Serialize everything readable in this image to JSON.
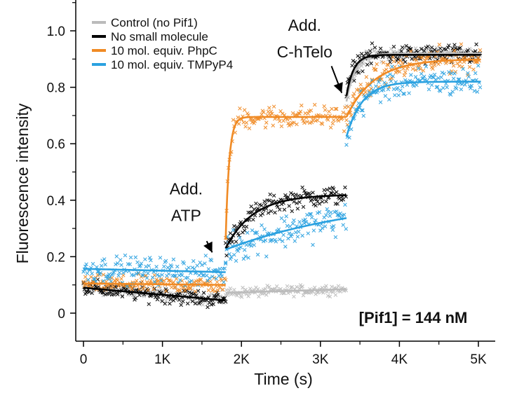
{
  "chart_data": {
    "type": "scatter",
    "xlabel": "Time (s)",
    "ylabel": "Fluorescence intensity",
    "xlim": [
      -100,
      5100
    ],
    "ylim": [
      -0.1,
      1.1
    ],
    "xticks": [
      {
        "value": 0,
        "label": "0"
      },
      {
        "value": 1000,
        "label": "1K"
      },
      {
        "value": 2000,
        "label": "2K"
      },
      {
        "value": 3000,
        "label": "3K"
      },
      {
        "value": 4000,
        "label": "4K"
      },
      {
        "value": 5000,
        "label": "5K"
      }
    ],
    "yticks": [
      {
        "value": 0,
        "label": "0"
      },
      {
        "value": 0.2,
        "label": "0.2"
      },
      {
        "value": 0.4,
        "label": "0.4"
      },
      {
        "value": 0.6,
        "label": "0.6"
      },
      {
        "value": 0.8,
        "label": "0.8"
      },
      {
        "value": 1.0,
        "label": "1.0"
      }
    ],
    "phase_boundaries": [
      1800,
      3330
    ],
    "series": [
      {
        "name": "Control (no Pif1)",
        "color": "#bbbbbb",
        "segments": [
          {
            "x0": 0,
            "x1": 1800,
            "y0": 0.09,
            "y1": 0.05,
            "type": "linear",
            "fit": false,
            "noise": 0.02
          },
          {
            "x0": 1800,
            "x1": 3330,
            "y0": 0.072,
            "y1": 0.085,
            "type": "linear",
            "fit": true,
            "noise": 0.015
          },
          {
            "x0": 3330,
            "x1": 5030,
            "start": 0.75,
            "plateau": 0.92,
            "tau": 110,
            "type": "exp",
            "fit": true,
            "noise": 0.02
          }
        ]
      },
      {
        "name": "No small molecule",
        "color": "#000000",
        "segments": [
          {
            "x0": 0,
            "x1": 1800,
            "y0": 0.09,
            "y1": 0.045,
            "type": "linear",
            "fit": true,
            "noise": 0.025
          },
          {
            "x0": 1800,
            "x1": 3330,
            "start": 0.23,
            "plateau": 0.42,
            "tau": 350,
            "type": "exp",
            "fit": true,
            "noise": 0.03
          },
          {
            "x0": 3330,
            "x1": 5030,
            "start": 0.77,
            "plateau": 0.915,
            "tau": 90,
            "type": "exp",
            "fit": true,
            "noise": 0.03
          }
        ]
      },
      {
        "name": "10 mol. equiv. PhpC",
        "color": "#f08a24",
        "segments": [
          {
            "x0": 0,
            "x1": 1800,
            "y0": 0.105,
            "y1": 0.1,
            "type": "linear",
            "fit": true,
            "noise": 0.025
          },
          {
            "x0": 1800,
            "x1": 3330,
            "start": 0.26,
            "plateau": 0.695,
            "tau": 45,
            "type": "exp",
            "fit": true,
            "noise": 0.035
          },
          {
            "x0": 3330,
            "x1": 5030,
            "start": 0.695,
            "plateau": 0.9,
            "tau": 350,
            "type": "exp",
            "fit": true,
            "noise": 0.04
          }
        ]
      },
      {
        "name": "10 mol. equiv. TMPyP4",
        "color": "#2aa1e0",
        "segments": [
          {
            "x0": 0,
            "x1": 1800,
            "y0": 0.157,
            "y1": 0.145,
            "type": "linear",
            "fit": true,
            "noise": 0.04
          },
          {
            "x0": 1800,
            "x1": 3330,
            "start": 0.225,
            "plateau": 0.42,
            "tau": 1800,
            "type": "exp",
            "fit": true,
            "noise": 0.05
          },
          {
            "x0": 3330,
            "x1": 5030,
            "start": 0.625,
            "plateau": 0.82,
            "tau": 200,
            "type": "exp",
            "fit": true,
            "noise": 0.045
          }
        ]
      }
    ],
    "annotations": [
      {
        "lines": [
          "Add.",
          "ATP"
        ],
        "arrow_from": [
          1560,
          0.255
        ],
        "arrow_to": [
          1630,
          0.215
        ],
        "text_at": [
          1300,
          0.42
        ]
      },
      {
        "lines": [
          "Add.",
          "C-hTelo"
        ],
        "arrow_from": [
          3140,
          0.875
        ],
        "arrow_to": [
          3270,
          0.78
        ],
        "text_at": [
          2800,
          1.0
        ]
      }
    ],
    "concentration_label": "[Pif1] = 144 nM",
    "legend_position": "top-left"
  }
}
